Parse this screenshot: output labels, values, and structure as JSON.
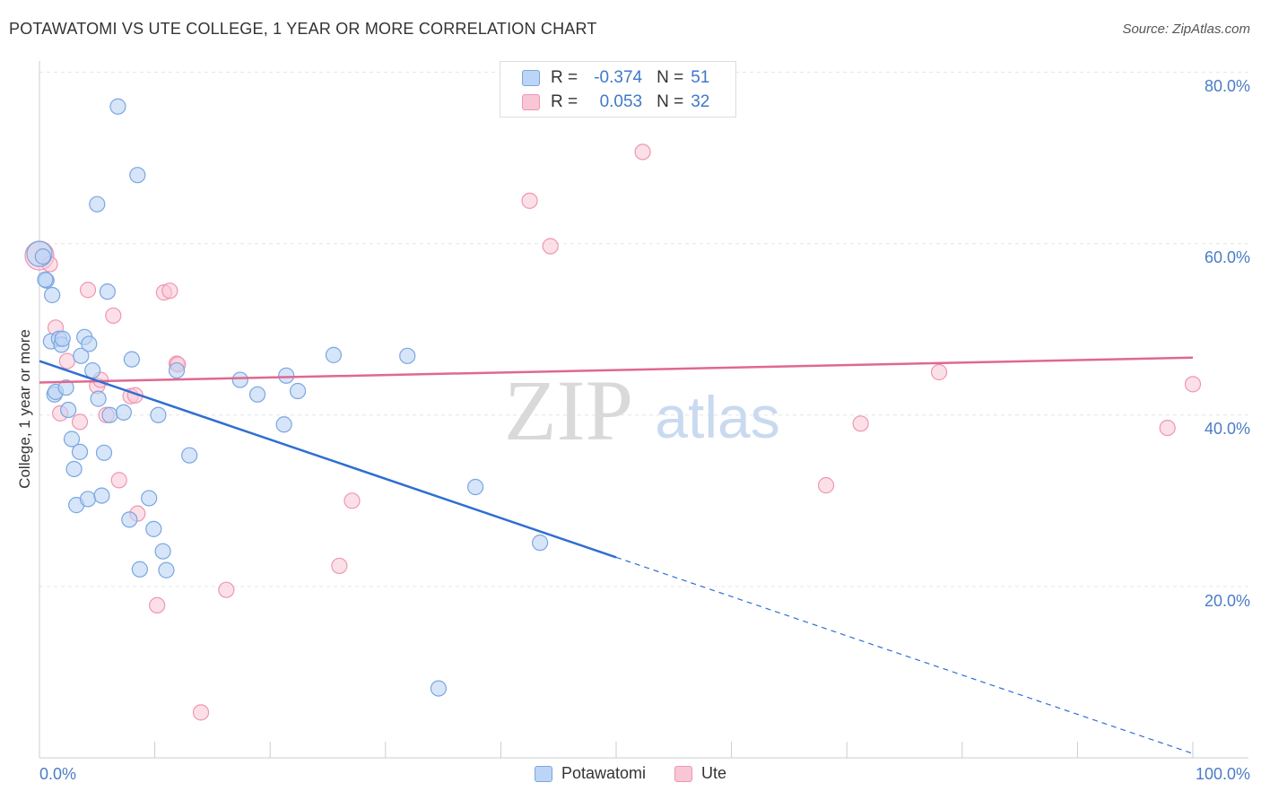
{
  "title": "POTAWATOMI VS UTE COLLEGE, 1 YEAR OR MORE CORRELATION CHART",
  "source": "Source: ZipAtlas.com",
  "watermark": {
    "zip": "ZIP",
    "atlas": "atlas"
  },
  "colors": {
    "blue_fill": "#bcd4f5",
    "blue_stroke": "#7aa6e0",
    "blue_line": "#2f6fd0",
    "pink_fill": "#f9c6d6",
    "pink_stroke": "#f095b2",
    "pink_line": "#e06890",
    "axis_text": "#4a7cc7",
    "grid": "#e6e6e6"
  },
  "legend": {
    "rows": [
      {
        "r_label": "R =",
        "r_value": "-0.374",
        "n_label": "N =",
        "n_value": "51"
      },
      {
        "r_label": "R =",
        "r_value": "0.053",
        "n_label": "N =",
        "n_value": "32"
      }
    ]
  },
  "bottom_legend": {
    "series1": "Potawatomi",
    "series2": "Ute"
  },
  "chart_data": {
    "type": "scatter",
    "title": "POTAWATOMI VS UTE COLLEGE, 1 YEAR OR MORE CORRELATION CHART",
    "xlabel": "",
    "ylabel": "College, 1 year or more",
    "xlim": [
      0,
      100
    ],
    "ylim": [
      0,
      80
    ],
    "x_tick_labels": [
      "0.0%",
      "100.0%"
    ],
    "y_ticks": [
      20,
      40,
      60,
      80
    ],
    "y_tick_labels": [
      "20.0%",
      "40.0%",
      "60.0%",
      "80.0%"
    ],
    "series": [
      {
        "name": "Potawatomi",
        "points": [
          [
            0.0,
            58.8
          ],
          [
            0.6,
            55.7
          ],
          [
            1.0,
            48.6
          ],
          [
            1.1,
            54.0
          ],
          [
            1.3,
            42.4
          ],
          [
            1.4,
            42.7
          ],
          [
            1.7,
            48.9
          ],
          [
            1.9,
            48.2
          ],
          [
            2.0,
            48.9
          ],
          [
            2.3,
            43.2
          ],
          [
            2.5,
            40.6
          ],
          [
            2.8,
            37.2
          ],
          [
            3.0,
            33.7
          ],
          [
            3.2,
            29.5
          ],
          [
            3.5,
            35.7
          ],
          [
            3.6,
            46.9
          ],
          [
            3.9,
            49.1
          ],
          [
            4.2,
            30.2
          ],
          [
            4.3,
            48.3
          ],
          [
            4.6,
            45.2
          ],
          [
            5.0,
            64.6
          ],
          [
            5.1,
            41.9
          ],
          [
            5.4,
            30.6
          ],
          [
            5.6,
            35.6
          ],
          [
            5.9,
            54.4
          ],
          [
            6.1,
            40.0
          ],
          [
            6.8,
            76.0
          ],
          [
            7.3,
            40.3
          ],
          [
            7.8,
            27.8
          ],
          [
            8.0,
            46.5
          ],
          [
            8.5,
            68.0
          ],
          [
            8.7,
            22.0
          ],
          [
            9.5,
            30.3
          ],
          [
            9.9,
            26.7
          ],
          [
            10.3,
            40.0
          ],
          [
            10.7,
            24.1
          ],
          [
            11.0,
            21.9
          ],
          [
            11.9,
            45.2
          ],
          [
            13.0,
            35.3
          ],
          [
            17.4,
            44.1
          ],
          [
            18.9,
            42.4
          ],
          [
            21.2,
            38.9
          ],
          [
            21.4,
            44.6
          ],
          [
            22.4,
            42.8
          ],
          [
            25.5,
            47.0
          ],
          [
            31.9,
            46.9
          ],
          [
            34.6,
            8.1
          ],
          [
            37.8,
            31.6
          ],
          [
            43.4,
            25.1
          ],
          [
            0.5,
            55.8
          ],
          [
            0.3,
            58.5
          ]
        ]
      },
      {
        "name": "Ute",
        "points": [
          [
            0.0,
            58.6
          ],
          [
            0.9,
            57.6
          ],
          [
            1.4,
            50.2
          ],
          [
            1.8,
            40.2
          ],
          [
            2.4,
            46.3
          ],
          [
            3.5,
            39.2
          ],
          [
            4.2,
            54.6
          ],
          [
            5.0,
            43.4
          ],
          [
            5.3,
            44.1
          ],
          [
            5.8,
            40.0
          ],
          [
            6.4,
            51.6
          ],
          [
            6.9,
            32.4
          ],
          [
            7.9,
            42.2
          ],
          [
            8.5,
            28.5
          ],
          [
            10.2,
            17.8
          ],
          [
            10.8,
            54.3
          ],
          [
            11.3,
            54.5
          ],
          [
            11.9,
            46.0
          ],
          [
            14.0,
            5.3
          ],
          [
            16.2,
            19.6
          ],
          [
            26.0,
            22.4
          ],
          [
            27.1,
            30.0
          ],
          [
            42.5,
            65.0
          ],
          [
            44.3,
            59.7
          ],
          [
            52.3,
            70.7
          ],
          [
            68.2,
            31.8
          ],
          [
            71.2,
            39.0
          ],
          [
            78.0,
            45.0
          ],
          [
            97.8,
            38.5
          ],
          [
            100.0,
            43.6
          ],
          [
            8.3,
            42.3
          ],
          [
            12.0,
            45.9
          ]
        ]
      }
    ],
    "trend_lines": [
      {
        "series": "Potawatomi",
        "from": [
          0,
          46.3
        ],
        "to_solid": [
          50,
          23.4
        ],
        "to_dashed": [
          100,
          0.5
        ]
      },
      {
        "series": "Ute",
        "from": [
          0,
          43.8
        ],
        "to": [
          100,
          46.7
        ]
      }
    ]
  }
}
